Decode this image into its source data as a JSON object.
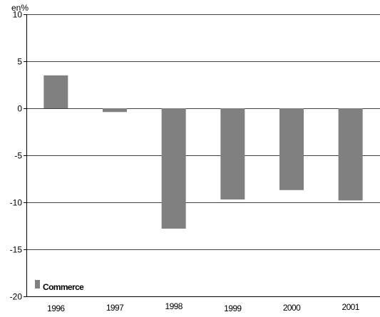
{
  "chart_data": {
    "type": "bar",
    "categories": [
      "1996",
      "1997",
      "1998",
      "1999",
      "2000",
      "2001"
    ],
    "series": [
      {
        "name": "Commerce",
        "values": [
          3.5,
          -0.4,
          -12.8,
          -9.7,
          -8.7,
          -9.8
        ]
      }
    ],
    "unit_label": "en%",
    "ylim": [
      -20,
      10
    ],
    "yticks": [
      10,
      5,
      0,
      -5,
      -10,
      -15,
      -20
    ],
    "ytick_labels": [
      "10",
      "5",
      "0",
      "-5",
      "-10",
      "-15",
      "-20"
    ],
    "grid": true,
    "legend": {
      "placement": "bottom-left",
      "entries": [
        "Commerce"
      ]
    },
    "colors": {
      "bar": "#808080",
      "grid": "#000000",
      "axis": "#000000"
    }
  }
}
